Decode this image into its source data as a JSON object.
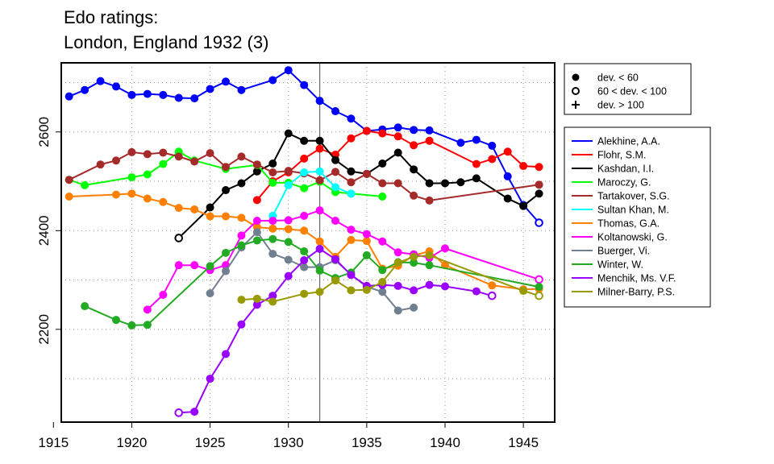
{
  "chart_data": {
    "type": "line",
    "title_lines": [
      "Edo ratings:",
      "London, England 1932 (3)"
    ],
    "xlabel": "",
    "ylabel": "",
    "xlim": [
      1915.5,
      1947
    ],
    "ylim": [
      2012,
      2740
    ],
    "x_ticks": [
      1915,
      1920,
      1925,
      1930,
      1935,
      1940,
      1945
    ],
    "y_ticks": [
      2200,
      2400,
      2600
    ],
    "x_grid": [
      1920,
      1925,
      1930,
      1935,
      1940,
      1945
    ],
    "y_grid": [
      2100,
      2200,
      2300,
      2400,
      2500,
      2600,
      2700
    ],
    "grid": true,
    "reference_line_x": 1932,
    "marker_legend": [
      {
        "symbol": "filled-circle",
        "label": "dev. < 60"
      },
      {
        "symbol": "open-circle",
        "label": "60 < dev. < 100"
      },
      {
        "symbol": "plus",
        "label": "dev. > 100"
      }
    ],
    "series": [
      {
        "name": "Alekhine, A.A.",
        "color": "#0000ff",
        "points": [
          [
            1916,
            2672,
            "f"
          ],
          [
            1917,
            2685,
            "f"
          ],
          [
            1918,
            2703,
            "f"
          ],
          [
            1919,
            2692,
            "f"
          ],
          [
            1920,
            2675,
            "f"
          ],
          [
            1921,
            2677,
            "f"
          ],
          [
            1922,
            2675,
            "f"
          ],
          [
            1923,
            2669,
            "f"
          ],
          [
            1924,
            2668,
            "f"
          ],
          [
            1925,
            2687,
            "f"
          ],
          [
            1926,
            2702,
            "f"
          ],
          [
            1927,
            2685,
            "f"
          ],
          [
            1929,
            2705,
            "f"
          ],
          [
            1930,
            2725,
            "f"
          ],
          [
            1931,
            2695,
            "f"
          ],
          [
            1932,
            2663,
            "f"
          ],
          [
            1933,
            2642,
            "f"
          ],
          [
            1934,
            2627,
            "f"
          ],
          [
            1935,
            2602,
            "f"
          ],
          [
            1936,
            2605,
            "f"
          ],
          [
            1937,
            2609,
            "f"
          ],
          [
            1938,
            2604,
            "f"
          ],
          [
            1939,
            2603,
            "f"
          ],
          [
            1941,
            2578,
            "f"
          ],
          [
            1942,
            2584,
            "f"
          ],
          [
            1943,
            2572,
            "f"
          ],
          [
            1944,
            2510,
            "f"
          ],
          [
            1945,
            2452,
            "f"
          ],
          [
            1946,
            2416,
            "o"
          ]
        ]
      },
      {
        "name": "Flohr, S.M.",
        "color": "#ff0000",
        "points": [
          [
            1928,
            2462,
            "f"
          ],
          [
            1929,
            2500,
            "f"
          ],
          [
            1930,
            2518,
            "f"
          ],
          [
            1931,
            2546,
            "f"
          ],
          [
            1932,
            2566,
            "f"
          ],
          [
            1933,
            2554,
            "f"
          ],
          [
            1934,
            2587,
            "f"
          ],
          [
            1935,
            2602,
            "f"
          ],
          [
            1936,
            2597,
            "f"
          ],
          [
            1937,
            2591,
            "f"
          ],
          [
            1938,
            2573,
            "f"
          ],
          [
            1939,
            2582,
            "f"
          ],
          [
            1942,
            2535,
            "f"
          ],
          [
            1943,
            2545,
            "f"
          ],
          [
            1944,
            2560,
            "f"
          ],
          [
            1945,
            2531,
            "f"
          ],
          [
            1946,
            2529,
            "f"
          ]
        ]
      },
      {
        "name": "Kashdan, I.I.",
        "color": "#000000",
        "points": [
          [
            1923,
            2385,
            "o"
          ],
          [
            1925,
            2447,
            "f"
          ],
          [
            1926,
            2482,
            "f"
          ],
          [
            1927,
            2496,
            "f"
          ],
          [
            1928,
            2520,
            "f"
          ],
          [
            1929,
            2536,
            "f"
          ],
          [
            1930,
            2597,
            "f"
          ],
          [
            1931,
            2582,
            "f"
          ],
          [
            1932,
            2582,
            "f"
          ],
          [
            1933,
            2543,
            "f"
          ],
          [
            1934,
            2520,
            "f"
          ],
          [
            1935,
            2515,
            "f"
          ],
          [
            1936,
            2536,
            "f"
          ],
          [
            1937,
            2558,
            "f"
          ],
          [
            1938,
            2524,
            "f"
          ],
          [
            1939,
            2496,
            "f"
          ],
          [
            1940,
            2496,
            "f"
          ],
          [
            1941,
            2498,
            "f"
          ],
          [
            1942,
            2506,
            "f"
          ],
          [
            1944,
            2465,
            "f"
          ],
          [
            1945,
            2450,
            "f"
          ],
          [
            1946,
            2475,
            "f"
          ]
        ]
      },
      {
        "name": "Maroczy, G.",
        "color": "#00ff00",
        "points": [
          [
            1916,
            2503,
            "f"
          ],
          [
            1917,
            2492,
            "f"
          ],
          [
            1920,
            2508,
            "f"
          ],
          [
            1921,
            2514,
            "f"
          ],
          [
            1922,
            2535,
            "f"
          ],
          [
            1923,
            2560,
            "f"
          ],
          [
            1924,
            2542,
            "f"
          ],
          [
            1926,
            2525,
            "f"
          ],
          [
            1928,
            2533,
            "f"
          ],
          [
            1929,
            2497,
            "f"
          ],
          [
            1930,
            2497,
            "f"
          ],
          [
            1931,
            2486,
            "f"
          ],
          [
            1932,
            2499,
            "f"
          ],
          [
            1933,
            2478,
            "f"
          ],
          [
            1934,
            2475,
            "f"
          ],
          [
            1936,
            2469,
            "f"
          ]
        ]
      },
      {
        "name": "Tartakover, S.G.",
        "color": "#a52a2a",
        "points": [
          [
            1916,
            2503,
            "f"
          ],
          [
            1918,
            2534,
            "f"
          ],
          [
            1919,
            2542,
            "f"
          ],
          [
            1920,
            2559,
            "f"
          ],
          [
            1921,
            2555,
            "f"
          ],
          [
            1922,
            2558,
            "f"
          ],
          [
            1923,
            2550,
            "f"
          ],
          [
            1924,
            2540,
            "f"
          ],
          [
            1925,
            2557,
            "f"
          ],
          [
            1926,
            2529,
            "f"
          ],
          [
            1927,
            2550,
            "f"
          ],
          [
            1928,
            2534,
            "f"
          ],
          [
            1929,
            2518,
            "f"
          ],
          [
            1930,
            2521,
            "f"
          ],
          [
            1931,
            2516,
            "f"
          ],
          [
            1932,
            2502,
            "f"
          ],
          [
            1933,
            2519,
            "f"
          ],
          [
            1934,
            2498,
            "f"
          ],
          [
            1935,
            2515,
            "f"
          ],
          [
            1936,
            2496,
            "f"
          ],
          [
            1937,
            2496,
            "f"
          ],
          [
            1938,
            2471,
            "f"
          ],
          [
            1939,
            2461,
            "f"
          ],
          [
            1946,
            2493,
            "f"
          ]
        ]
      },
      {
        "name": "Sultan Khan, M.",
        "color": "#00ffff",
        "points": [
          [
            1929,
            2430,
            "f"
          ],
          [
            1930,
            2492,
            "f"
          ],
          [
            1931,
            2518,
            "f"
          ],
          [
            1932,
            2520,
            "f"
          ],
          [
            1933,
            2488,
            "f"
          ],
          [
            1934,
            2475,
            "f"
          ]
        ]
      },
      {
        "name": "Thomas, G.A.",
        "color": "#ff7f00",
        "points": [
          [
            1916,
            2469,
            "f"
          ],
          [
            1919,
            2473,
            "f"
          ],
          [
            1920,
            2475,
            "f"
          ],
          [
            1921,
            2465,
            "f"
          ],
          [
            1922,
            2458,
            "f"
          ],
          [
            1923,
            2446,
            "f"
          ],
          [
            1924,
            2443,
            "f"
          ],
          [
            1925,
            2429,
            "f"
          ],
          [
            1926,
            2429,
            "f"
          ],
          [
            1927,
            2426,
            "f"
          ],
          [
            1928,
            2407,
            "f"
          ],
          [
            1929,
            2404,
            "f"
          ],
          [
            1930,
            2403,
            "f"
          ],
          [
            1931,
            2400,
            "f"
          ],
          [
            1932,
            2378,
            "f"
          ],
          [
            1933,
            2347,
            "f"
          ],
          [
            1934,
            2381,
            "f"
          ],
          [
            1935,
            2379,
            "f"
          ],
          [
            1936,
            2323,
            "f"
          ],
          [
            1937,
            2329,
            "f"
          ],
          [
            1938,
            2350,
            "f"
          ],
          [
            1939,
            2358,
            "f"
          ],
          [
            1940,
            2330,
            "f"
          ],
          [
            1943,
            2289,
            "f"
          ],
          [
            1945,
            2281,
            "f"
          ],
          [
            1946,
            2282,
            "f"
          ]
        ]
      },
      {
        "name": "Koltanowski, G.",
        "color": "#ff00ff",
        "points": [
          [
            1921,
            2240,
            "f"
          ],
          [
            1922,
            2270,
            "f"
          ],
          [
            1923,
            2330,
            "f"
          ],
          [
            1924,
            2330,
            "f"
          ],
          [
            1925,
            2320,
            "f"
          ],
          [
            1926,
            2330,
            "f"
          ],
          [
            1927,
            2390,
            "f"
          ],
          [
            1928,
            2420,
            "f"
          ],
          [
            1929,
            2420,
            "f"
          ],
          [
            1930,
            2421,
            "f"
          ],
          [
            1931,
            2430,
            "f"
          ],
          [
            1932,
            2441,
            "f"
          ],
          [
            1933,
            2420,
            "f"
          ],
          [
            1934,
            2402,
            "f"
          ],
          [
            1935,
            2393,
            "f"
          ],
          [
            1936,
            2378,
            "f"
          ],
          [
            1937,
            2356,
            "f"
          ],
          [
            1938,
            2352,
            "f"
          ],
          [
            1939,
            2345,
            "f"
          ],
          [
            1940,
            2364,
            "f"
          ],
          [
            1946,
            2301,
            "o"
          ]
        ]
      },
      {
        "name": "Buerger, Vi.",
        "color": "#708090",
        "points": [
          [
            1925,
            2273,
            "f"
          ],
          [
            1926,
            2318,
            "f"
          ],
          [
            1927,
            2366,
            "f"
          ],
          [
            1928,
            2397,
            "f"
          ],
          [
            1929,
            2353,
            "f"
          ],
          [
            1930,
            2341,
            "f"
          ],
          [
            1931,
            2326,
            "f"
          ],
          [
            1932,
            2326,
            "f"
          ],
          [
            1933,
            2340,
            "f"
          ],
          [
            1934,
            2311,
            "f"
          ],
          [
            1935,
            2286,
            "f"
          ],
          [
            1936,
            2276,
            "f"
          ],
          [
            1937,
            2238,
            "f"
          ],
          [
            1938,
            2244,
            "f"
          ]
        ]
      },
      {
        "name": "Winter, W.",
        "color": "#22aa22",
        "points": [
          [
            1917,
            2247,
            "f"
          ],
          [
            1919,
            2219,
            "f"
          ],
          [
            1920,
            2208,
            "f"
          ],
          [
            1921,
            2209,
            "f"
          ],
          [
            1925,
            2328,
            "f"
          ],
          [
            1926,
            2355,
            "f"
          ],
          [
            1927,
            2370,
            "f"
          ],
          [
            1928,
            2380,
            "f"
          ],
          [
            1929,
            2383,
            "f"
          ],
          [
            1930,
            2377,
            "f"
          ],
          [
            1931,
            2358,
            "f"
          ],
          [
            1932,
            2319,
            "f"
          ],
          [
            1933,
            2304,
            "f"
          ],
          [
            1934,
            2315,
            "f"
          ],
          [
            1935,
            2350,
            "f"
          ],
          [
            1936,
            2320,
            "f"
          ],
          [
            1937,
            2336,
            "f"
          ],
          [
            1938,
            2335,
            "f"
          ],
          [
            1939,
            2330,
            "f"
          ],
          [
            1946,
            2286,
            "f"
          ]
        ]
      },
      {
        "name": "Menchik, Ms. V.F.",
        "color": "#9900ff",
        "points": [
          [
            1923,
            2031,
            "o"
          ],
          [
            1924,
            2033,
            "f"
          ],
          [
            1925,
            2100,
            "f"
          ],
          [
            1926,
            2150,
            "f"
          ],
          [
            1927,
            2210,
            "f"
          ],
          [
            1928,
            2250,
            "f"
          ],
          [
            1929,
            2268,
            "f"
          ],
          [
            1930,
            2308,
            "f"
          ],
          [
            1931,
            2340,
            "f"
          ],
          [
            1932,
            2363,
            "f"
          ],
          [
            1933,
            2342,
            "f"
          ],
          [
            1934,
            2310,
            "f"
          ],
          [
            1935,
            2288,
            "f"
          ],
          [
            1936,
            2290,
            "f"
          ],
          [
            1937,
            2288,
            "f"
          ],
          [
            1938,
            2279,
            "f"
          ],
          [
            1939,
            2290,
            "f"
          ],
          [
            1940,
            2287,
            "f"
          ],
          [
            1942,
            2277,
            "f"
          ],
          [
            1943,
            2268,
            "o"
          ]
        ]
      },
      {
        "name": "Milner-Barry, P.S.",
        "color": "#999900",
        "points": [
          [
            1927,
            2260,
            "f"
          ],
          [
            1928,
            2262,
            "f"
          ],
          [
            1929,
            2256,
            "f"
          ],
          [
            1931,
            2272,
            "f"
          ],
          [
            1932,
            2276,
            "f"
          ],
          [
            1933,
            2299,
            "f"
          ],
          [
            1934,
            2279,
            "f"
          ],
          [
            1935,
            2280,
            "f"
          ],
          [
            1936,
            2296,
            "f"
          ],
          [
            1937,
            2335,
            "f"
          ],
          [
            1938,
            2347,
            "f"
          ],
          [
            1939,
            2350,
            "f"
          ],
          [
            1945,
            2278,
            "f"
          ],
          [
            1946,
            2268,
            "o"
          ]
        ]
      }
    ]
  }
}
